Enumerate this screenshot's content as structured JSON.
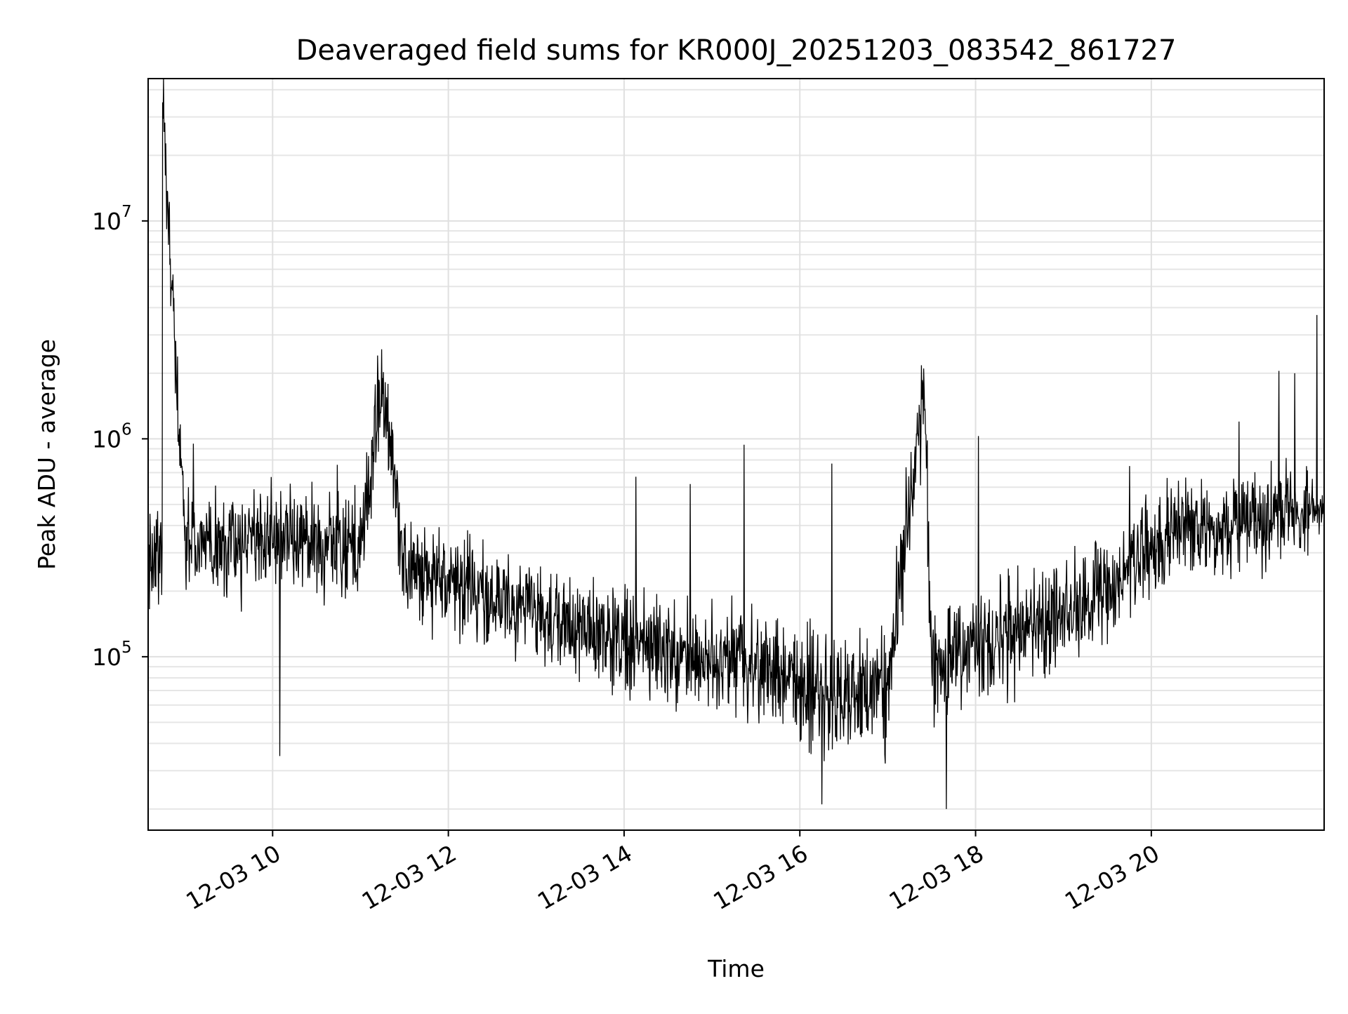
{
  "chart_data": {
    "type": "line",
    "title": "Deaveraged field sums for KR000J_20251203_083542_861727",
    "xlabel": "Time",
    "ylabel": "Peak ADU - average",
    "yscale": "log",
    "ylim": [
      16000,
      45000000
    ],
    "xlim": [
      "2025-12-03 08:35",
      "2025-12-03 21:58"
    ],
    "grid": {
      "major": true,
      "minor_y": true
    },
    "x_ticks": [
      {
        "t": "2025-12-03 10:00",
        "label": "12-03 10"
      },
      {
        "t": "2025-12-03 12:00",
        "label": "12-03 12"
      },
      {
        "t": "2025-12-03 14:00",
        "label": "12-03 14"
      },
      {
        "t": "2025-12-03 16:00",
        "label": "12-03 16"
      },
      {
        "t": "2025-12-03 18:00",
        "label": "12-03 18"
      },
      {
        "t": "2025-12-03 20:00",
        "label": "12-03 20"
      }
    ],
    "y_ticks": [
      {
        "value": 100000,
        "base": "10",
        "exp": "5"
      },
      {
        "value": 1000000,
        "base": "10",
        "exp": "6"
      },
      {
        "value": 10000000,
        "base": "10",
        "exp": "7"
      }
    ],
    "series": [
      {
        "color": "#000000",
        "x": [
          "2025-12-03 08:35",
          "2025-12-03 08:45",
          "2025-12-03 08:45",
          "2025-12-03 09:00",
          "2025-12-03 09:30",
          "2025-12-03 10:00",
          "2025-12-03 10:30",
          "2025-12-03 11:00",
          "2025-12-03 11:15",
          "2025-12-03 11:30",
          "2025-12-03 12:00",
          "2025-12-03 12:30",
          "2025-12-03 13:00",
          "2025-12-03 13:30",
          "2025-12-03 14:00",
          "2025-12-03 14:30",
          "2025-12-03 15:00",
          "2025-12-03 15:30",
          "2025-12-03 16:00",
          "2025-12-03 16:30",
          "2025-12-03 17:00",
          "2025-12-03 17:25",
          "2025-12-03 17:30",
          "2025-12-03 18:00",
          "2025-12-03 18:30",
          "2025-12-03 19:00",
          "2025-12-03 19:30",
          "2025-12-03 20:00",
          "2025-12-03 20:30",
          "2025-12-03 21:00",
          "2025-12-03 21:30",
          "2025-12-03 21:55"
        ],
        "y": [
          250000,
          300000,
          35000000,
          320000,
          330000,
          350000,
          330000,
          300000,
          1900000,
          260000,
          220000,
          190000,
          160000,
          140000,
          120000,
          110000,
          95000,
          90000,
          75000,
          65000,
          70000,
          1700000,
          90000,
          110000,
          130000,
          150000,
          200000,
          330000,
          380000,
          400000,
          450000,
          480000
        ],
        "amplitude_decades": [
          0.35,
          0.35,
          0,
          0.35,
          0.35,
          0.35,
          0.35,
          0.35,
          0,
          0.35,
          0.35,
          0.33,
          0.33,
          0.35,
          0.38,
          0.38,
          0.38,
          0.38,
          0.42,
          0.42,
          0.42,
          0,
          0.4,
          0.38,
          0.36,
          0.35,
          0.34,
          0.33,
          0.33,
          0.34,
          0.33,
          0.2
        ],
        "spikes": [
          {
            "t": "2025-12-03 09:06",
            "y": 950000
          },
          {
            "t": "2025-12-03 10:44",
            "y": 760000
          },
          {
            "t": "2025-12-03 14:08",
            "y": 670000
          },
          {
            "t": "2025-12-03 14:45",
            "y": 620000
          },
          {
            "t": "2025-12-03 15:22",
            "y": 940000
          },
          {
            "t": "2025-12-03 16:22",
            "y": 770000
          },
          {
            "t": "2025-12-03 18:02",
            "y": 1030000
          },
          {
            "t": "2025-12-03 19:45",
            "y": 750000
          },
          {
            "t": "2025-12-03 21:00",
            "y": 1200000
          },
          {
            "t": "2025-12-03 21:27",
            "y": 2050000
          },
          {
            "t": "2025-12-03 21:38",
            "y": 2000000
          },
          {
            "t": "2025-12-03 21:53",
            "y": 3700000
          }
        ],
        "dips": [
          {
            "t": "2025-12-03 10:05",
            "y": 35000
          },
          {
            "t": "2025-12-03 16:15",
            "y": 21000
          },
          {
            "t": "2025-12-03 17:40",
            "y": 20000
          }
        ]
      }
    ]
  }
}
